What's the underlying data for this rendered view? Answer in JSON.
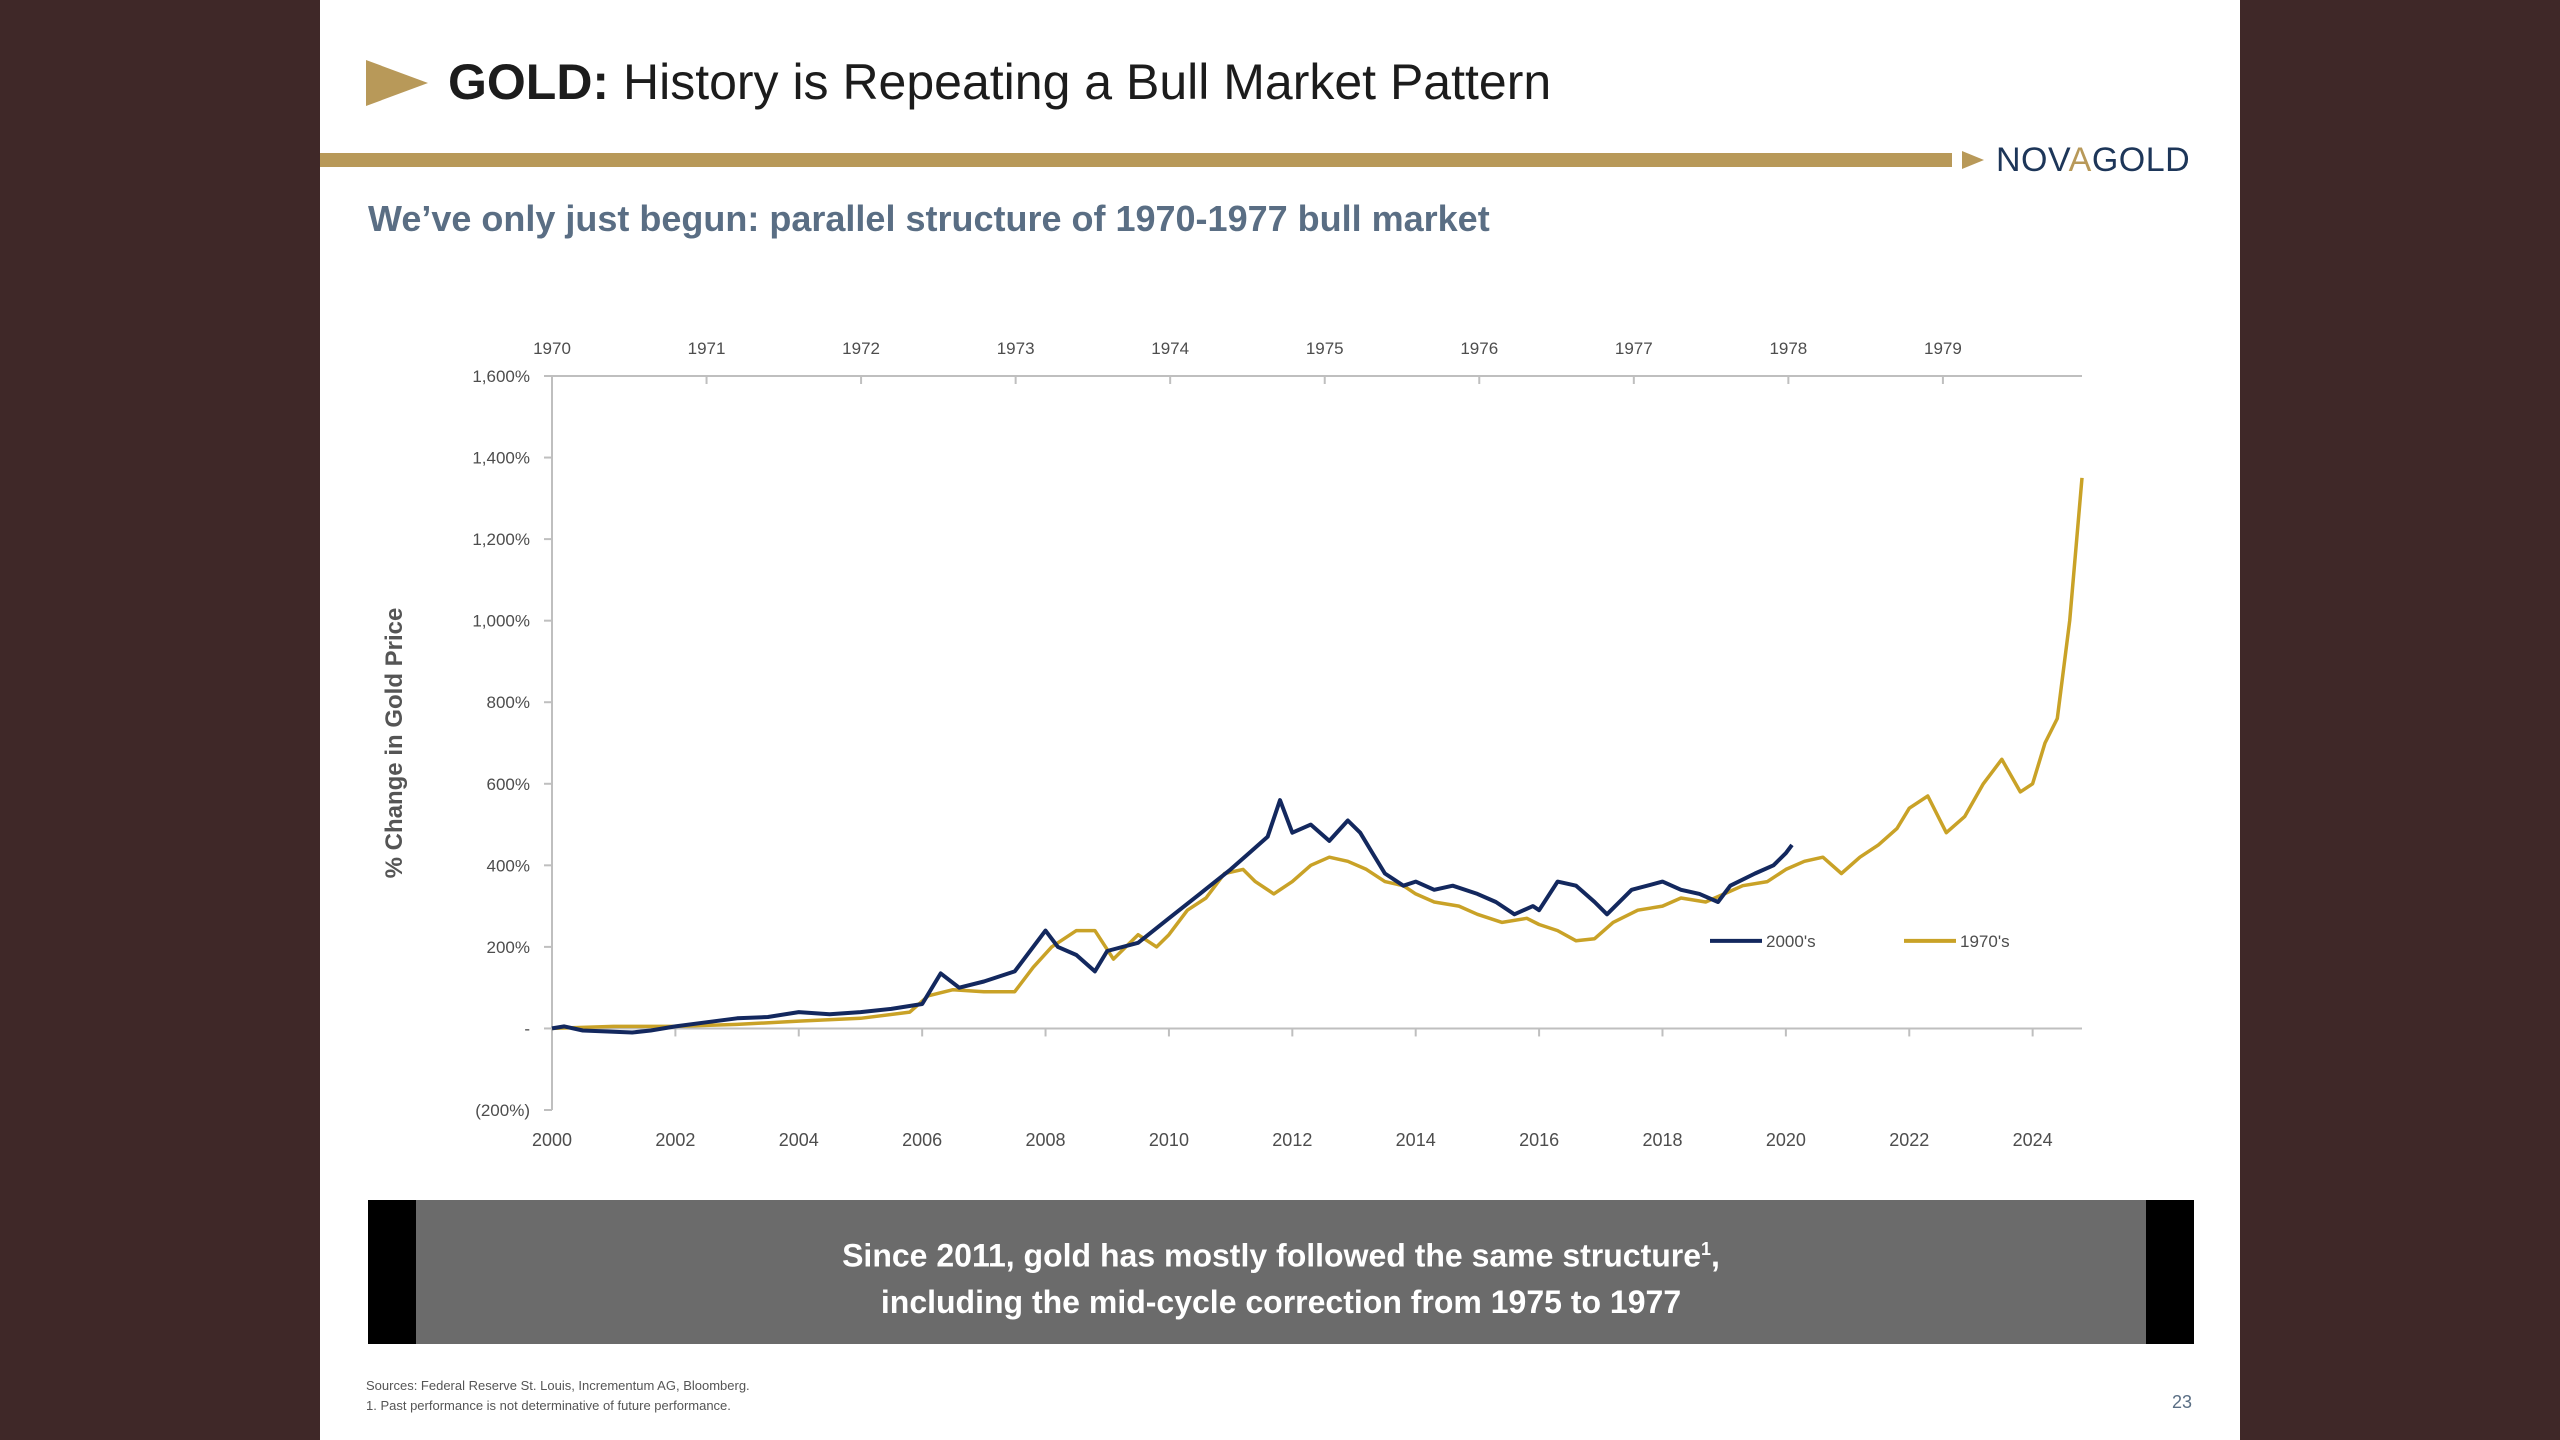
{
  "header": {
    "title_bold": "GOLD:",
    "title_rest": " History is Repeating a Bull Market Pattern",
    "logo_pre": "NOV",
    "logo_accent": "A",
    "logo_post": "GOLD"
  },
  "subtitle": "We’ve only just begun: parallel structure of 1970-1977 bull market",
  "callout": {
    "line1": "Since 2011, gold has mostly followed the same structure",
    "line1_sup": "1",
    "line1_end": ",",
    "line2": "including the mid-cycle correction from 1975 to 1977"
  },
  "footnotes": {
    "sources": "Sources: Federal Reserve St. Louis, Incrementum AG, Bloomberg.",
    "note1": "1. Past performance is not determinative of future performance."
  },
  "page_number": "23",
  "colors": {
    "gold": "#b89959",
    "navy": "#1d3659",
    "line_2000s": "#13285e",
    "line_1970s": "#c9a227",
    "subtitle": "#5a6e84",
    "callout_bg": "#6b6b6b"
  },
  "chart_data": {
    "type": "line",
    "title": "",
    "ylabel": "% Change in Gold Price",
    "xlabel": "",
    "ylim": [
      -200,
      1600
    ],
    "y_ticks": [
      -200,
      0,
      200,
      400,
      600,
      800,
      1000,
      1200,
      1400,
      1600
    ],
    "y_tick_labels": [
      "(200%)",
      "-",
      "200%",
      "400%",
      "600%",
      "800%",
      "1,000%",
      "1,200%",
      "1,400%",
      "1,600%"
    ],
    "x_bottom": {
      "range": [
        2000,
        2024.8
      ],
      "ticks": [
        2000,
        2002,
        2004,
        2006,
        2008,
        2010,
        2012,
        2014,
        2016,
        2018,
        2020,
        2022,
        2024
      ]
    },
    "x_top": {
      "range": [
        1970,
        1979.9
      ],
      "ticks": [
        1970,
        1971,
        1972,
        1973,
        1974,
        1975,
        1976,
        1977,
        1978,
        1979
      ]
    },
    "legend": [
      {
        "name": "2000's"
      },
      {
        "name": "1970's"
      }
    ],
    "legend_position": "lower-right",
    "series": [
      {
        "name": "2000's",
        "axis": "bottom",
        "x": [
          2000,
          2000.2,
          2000.5,
          2001,
          2001.3,
          2001.6,
          2002,
          2002.5,
          2003,
          2003.5,
          2004,
          2004.5,
          2005,
          2005.5,
          2006,
          2006.3,
          2006.6,
          2007,
          2007.5,
          2008,
          2008.2,
          2008.5,
          2008.8,
          2009,
          2009.5,
          2010,
          2010.5,
          2011,
          2011.3,
          2011.6,
          2011.8,
          2012,
          2012.3,
          2012.6,
          2012.9,
          2013.1,
          2013.3,
          2013.5,
          2013.8,
          2014,
          2014.3,
          2014.6,
          2015,
          2015.3,
          2015.6,
          2015.9,
          2016,
          2016.3,
          2016.6,
          2016.9,
          2017.1,
          2017.5,
          2018,
          2018.3,
          2018.6,
          2018.9,
          2019.1,
          2019.5,
          2019.8,
          2020,
          2020.1
        ],
        "y": [
          0,
          5,
          -5,
          -8,
          -10,
          -5,
          5,
          15,
          25,
          28,
          40,
          35,
          40,
          48,
          60,
          135,
          100,
          115,
          140,
          240,
          200,
          180,
          140,
          190,
          210,
          270,
          330,
          390,
          430,
          470,
          560,
          480,
          500,
          460,
          510,
          480,
          430,
          380,
          350,
          360,
          340,
          350,
          330,
          310,
          280,
          300,
          290,
          360,
          350,
          310,
          280,
          340,
          360,
          340,
          330,
          310,
          350,
          380,
          400,
          430,
          450
        ]
      },
      {
        "name": "1970's",
        "axis": "bottom",
        "x": [
          2000,
          2001,
          2002,
          2003,
          2004,
          2005,
          2005.8,
          2006.1,
          2006.5,
          2007,
          2007.5,
          2007.8,
          2008.1,
          2008.5,
          2008.8,
          2009.1,
          2009.5,
          2009.8,
          2010,
          2010.3,
          2010.6,
          2010.9,
          2011.2,
          2011.4,
          2011.7,
          2012,
          2012.3,
          2012.6,
          2012.9,
          2013.2,
          2013.5,
          2013.8,
          2014,
          2014.3,
          2014.7,
          2015,
          2015.4,
          2015.8,
          2016,
          2016.3,
          2016.6,
          2016.9,
          2017.2,
          2017.6,
          2018,
          2018.3,
          2018.7,
          2019,
          2019.3,
          2019.7,
          2020,
          2020.3,
          2020.6,
          2020.9,
          2021.2,
          2021.5,
          2021.8,
          2022,
          2022.3,
          2022.6,
          2022.9,
          2023.2,
          2023.5,
          2023.8,
          2024,
          2024.2,
          2024.4,
          2024.6,
          2024.8
        ],
        "y": [
          0,
          5,
          5,
          10,
          18,
          25,
          40,
          80,
          95,
          90,
          90,
          150,
          200,
          240,
          240,
          170,
          230,
          200,
          230,
          290,
          320,
          380,
          390,
          360,
          330,
          360,
          400,
          420,
          410,
          390,
          360,
          350,
          330,
          310,
          300,
          280,
          260,
          270,
          255,
          240,
          215,
          220,
          260,
          290,
          300,
          320,
          310,
          330,
          350,
          360,
          390,
          410,
          420,
          380,
          420,
          450,
          490,
          540,
          570,
          480,
          520,
          600,
          660,
          580,
          600,
          700,
          760,
          1000,
          1350
        ]
      }
    ]
  }
}
